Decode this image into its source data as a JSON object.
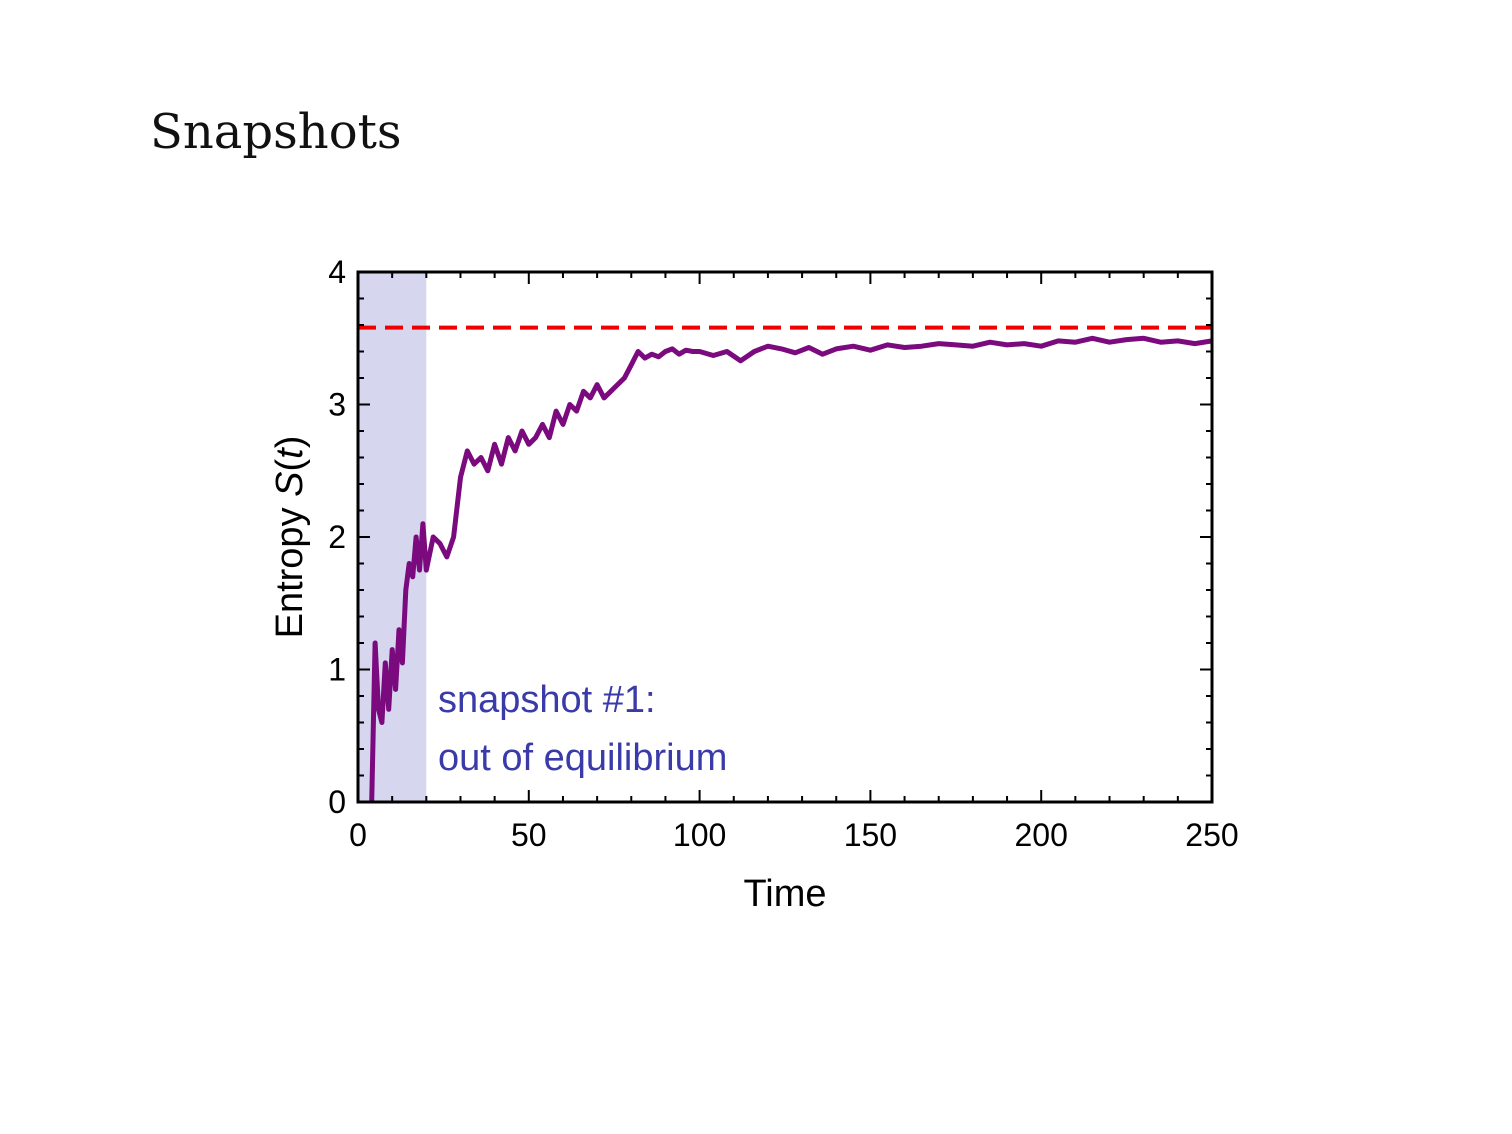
{
  "slide": {
    "title": "Snapshots"
  },
  "chart_data": {
    "type": "line",
    "xlabel": "Time",
    "ylabel": "Entropy S(t)",
    "ylabel_parts": {
      "prefix": "Entropy ",
      "symbol": "S",
      "open": "(",
      "var": "t",
      "close": ")"
    },
    "xlim": [
      0,
      250
    ],
    "ylim": [
      0,
      4
    ],
    "x_ticks": [
      0,
      50,
      100,
      150,
      200,
      250
    ],
    "y_ticks": [
      0,
      1,
      2,
      3,
      4
    ],
    "x_tick_labels": [
      "0",
      "50",
      "100",
      "150",
      "200",
      "250"
    ],
    "y_tick_labels": [
      "0",
      "1",
      "2",
      "3",
      "4"
    ],
    "grid": false,
    "highlight_region": {
      "x_start": 0,
      "x_end": 20,
      "color": "#d6d6ee"
    },
    "reference_line": {
      "y": 3.58,
      "style": "dashed",
      "color": "#ee0000"
    },
    "annotation": {
      "lines": [
        "snapshot #1:",
        "out of equilibrium"
      ],
      "color": "#3a3aa8"
    },
    "series": [
      {
        "name": "Entropy",
        "color": "#7a0a7e",
        "x": [
          4,
          5,
          6,
          7,
          8,
          9,
          10,
          11,
          12,
          13,
          14,
          15,
          16,
          17,
          18,
          19,
          20,
          22,
          24,
          26,
          28,
          30,
          32,
          34,
          36,
          38,
          40,
          42,
          44,
          46,
          48,
          50,
          52,
          54,
          56,
          58,
          60,
          62,
          64,
          66,
          68,
          70,
          72,
          74,
          76,
          78,
          80,
          82,
          84,
          86,
          88,
          90,
          92,
          94,
          96,
          98,
          100,
          104,
          108,
          112,
          116,
          120,
          124,
          128,
          132,
          136,
          140,
          145,
          150,
          155,
          160,
          165,
          170,
          175,
          180,
          185,
          190,
          195,
          200,
          205,
          210,
          215,
          220,
          225,
          230,
          235,
          240,
          245,
          250
        ],
        "values": [
          0.0,
          1.2,
          0.7,
          0.6,
          1.05,
          0.7,
          1.15,
          0.85,
          1.3,
          1.05,
          1.6,
          1.8,
          1.7,
          2.0,
          1.75,
          2.1,
          1.75,
          2.0,
          1.95,
          1.85,
          2.0,
          2.45,
          2.65,
          2.55,
          2.6,
          2.5,
          2.7,
          2.55,
          2.75,
          2.65,
          2.8,
          2.7,
          2.75,
          2.85,
          2.75,
          2.95,
          2.85,
          3.0,
          2.95,
          3.1,
          3.05,
          3.15,
          3.05,
          3.1,
          3.15,
          3.2,
          3.3,
          3.4,
          3.35,
          3.38,
          3.36,
          3.4,
          3.42,
          3.38,
          3.41,
          3.4,
          3.4,
          3.37,
          3.4,
          3.33,
          3.4,
          3.44,
          3.42,
          3.39,
          3.43,
          3.38,
          3.42,
          3.44,
          3.41,
          3.45,
          3.43,
          3.44,
          3.46,
          3.45,
          3.44,
          3.47,
          3.45,
          3.46,
          3.44,
          3.48,
          3.47,
          3.5,
          3.47,
          3.49,
          3.5,
          3.47,
          3.48,
          3.46,
          3.48
        ]
      }
    ]
  }
}
